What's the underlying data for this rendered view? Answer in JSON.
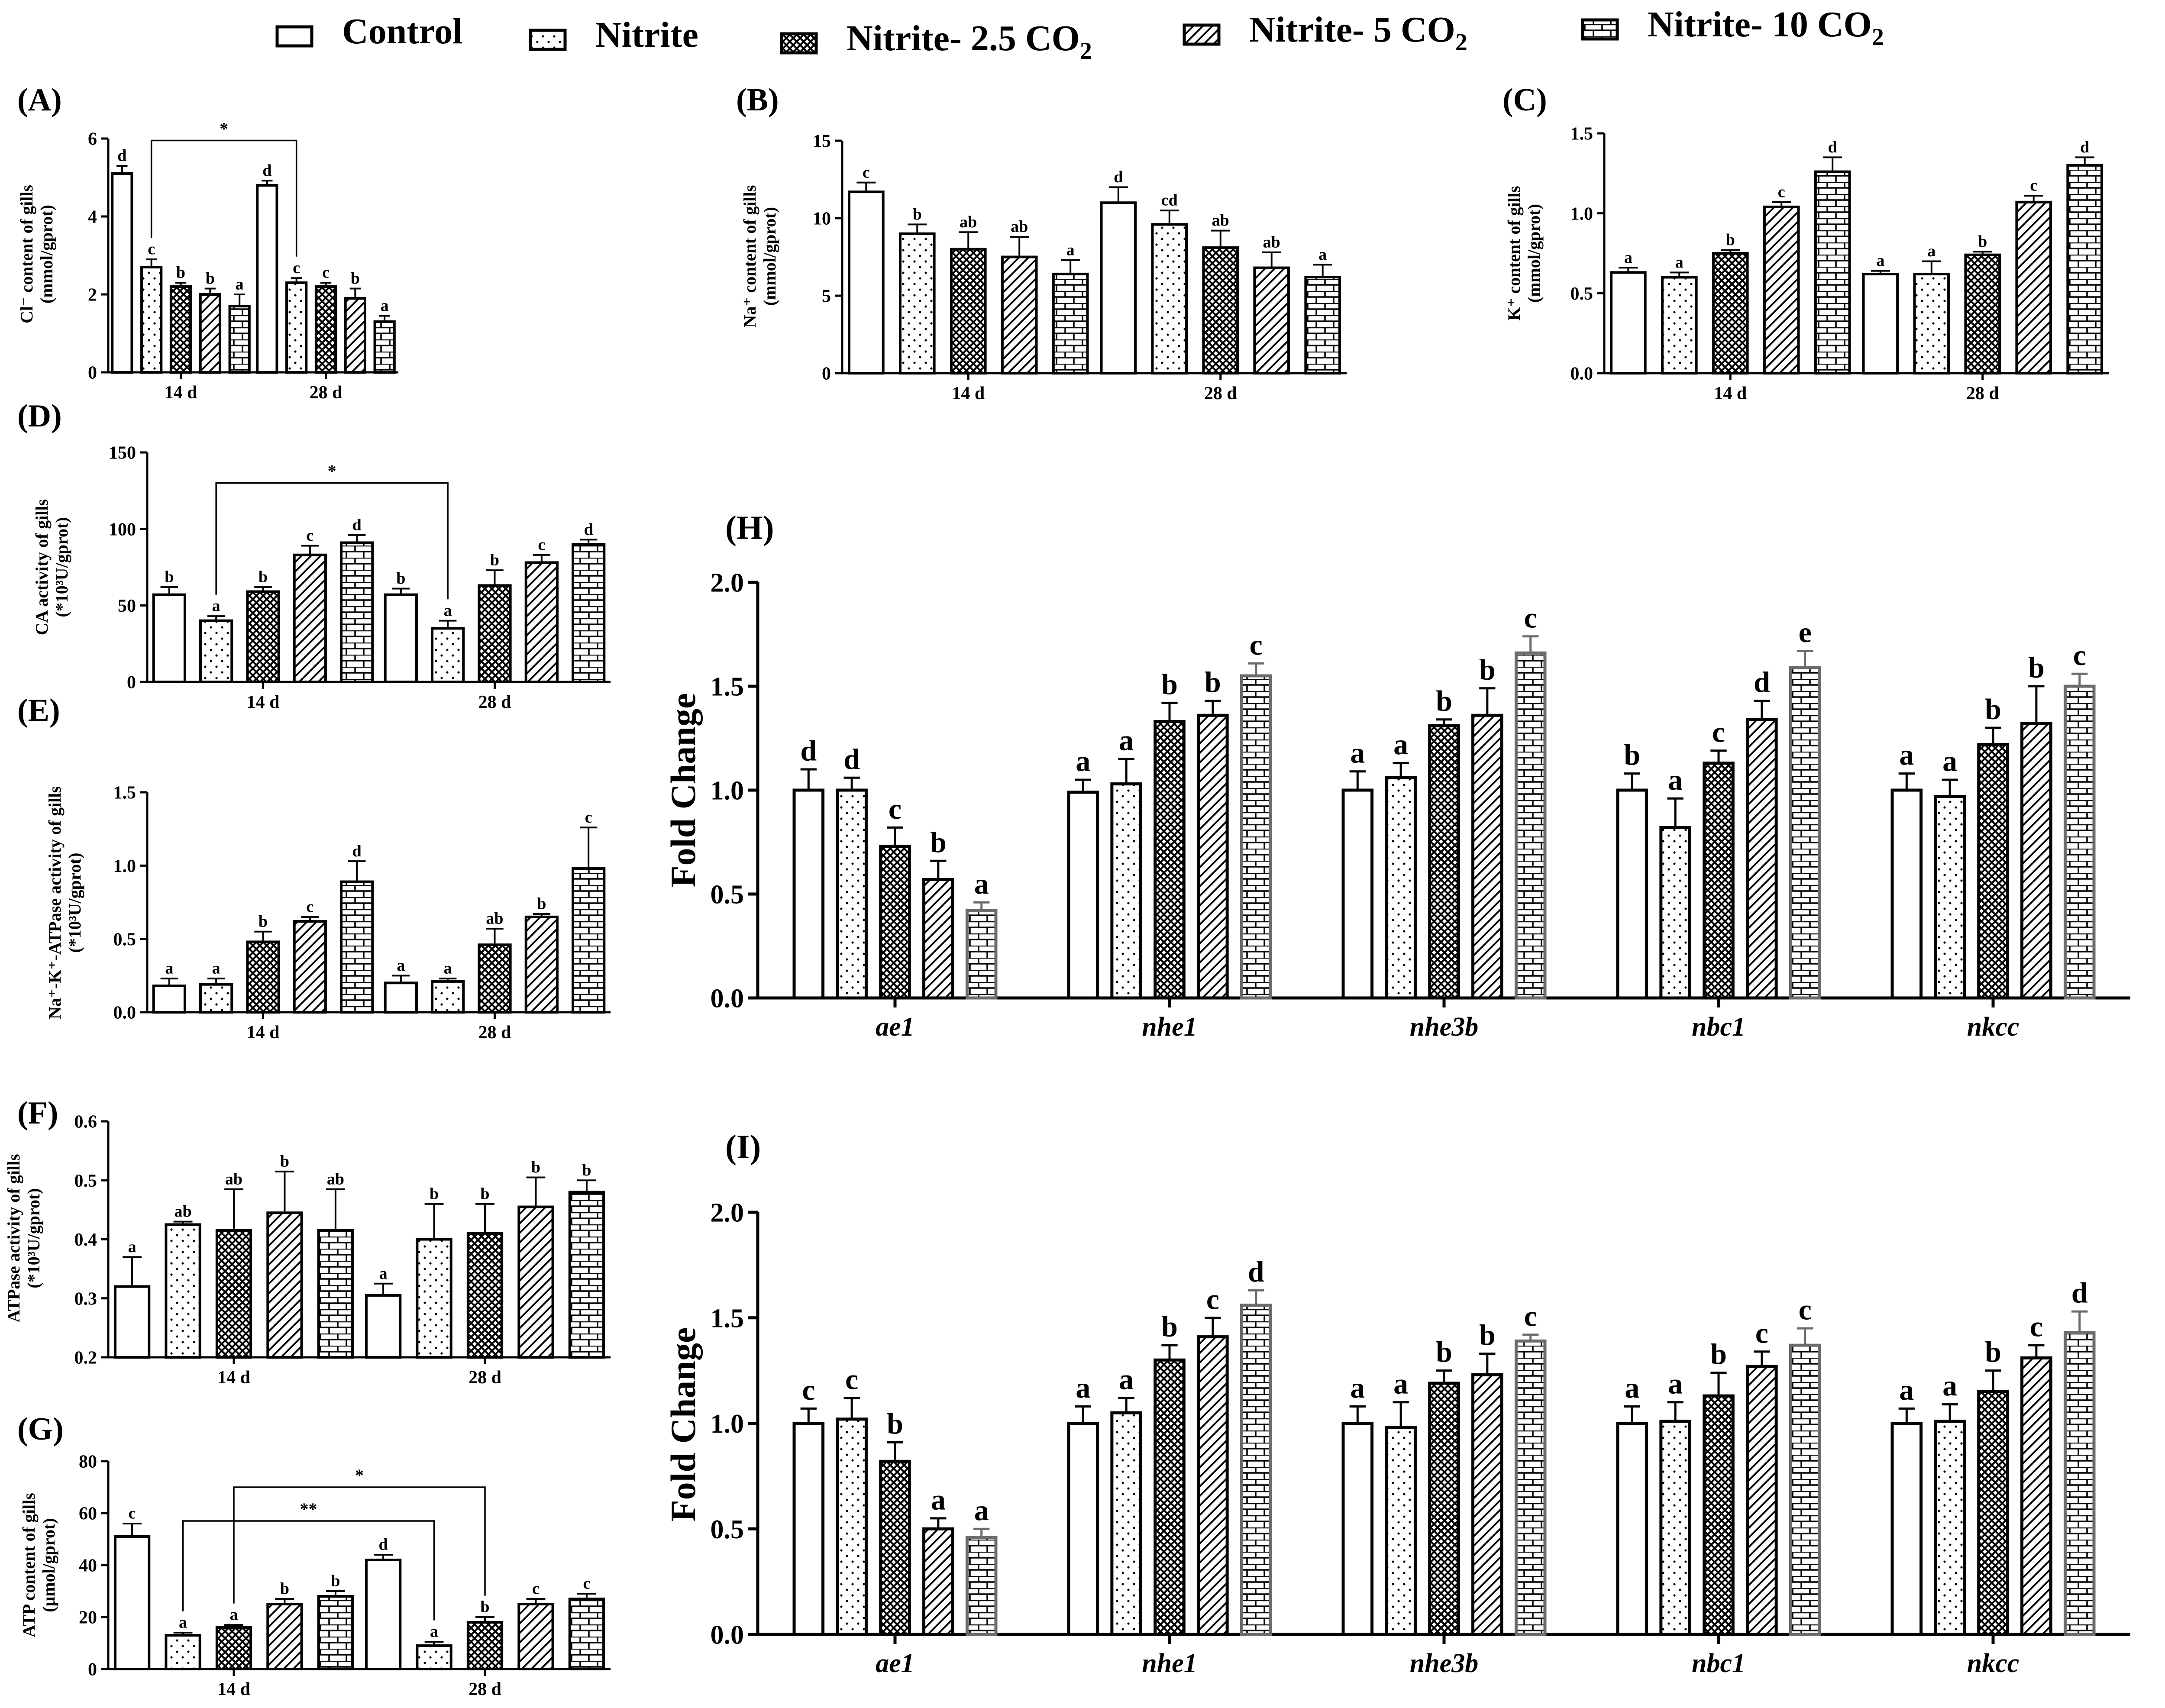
{
  "legend": [
    {
      "name": "Control",
      "sub": "",
      "pattern": "control"
    },
    {
      "name": "Nitrite",
      "sub": "",
      "pattern": "nitrite"
    },
    {
      "name": "Nitrite- 2.5 CO",
      "sub": "2",
      "pattern": "co25"
    },
    {
      "name": "Nitrite- 5 CO",
      "sub": "2",
      "pattern": "co5"
    },
    {
      "name": "Nitrite- 10 CO",
      "sub": "2",
      "pattern": "co10"
    }
  ],
  "chart_data": [
    {
      "panel": "(A)",
      "type": "bar",
      "xlabel": "",
      "ylabel": [
        "Cl⁻ content of gills",
        "(mmol/gprot)"
      ],
      "ylim": [
        0,
        6
      ],
      "ticks": [
        "0",
        "2",
        "4",
        "6"
      ],
      "categories": [
        "14 d",
        "28 d"
      ],
      "series": [
        {
          "name": "Control",
          "values": [
            5.1,
            4.8
          ],
          "err": [
            0.2,
            0.12
          ],
          "letters": [
            "d",
            "d"
          ]
        },
        {
          "name": "Nitrite",
          "values": [
            2.7,
            2.3
          ],
          "err": [
            0.2,
            0.12
          ],
          "letters": [
            "c",
            "c"
          ]
        },
        {
          "name": "Nitrite- 2.5 CO2",
          "values": [
            2.2,
            2.2
          ],
          "err": [
            0.1,
            0.1
          ],
          "letters": [
            "b",
            "c"
          ]
        },
        {
          "name": "Nitrite- 5 CO2",
          "values": [
            2.0,
            1.9
          ],
          "err": [
            0.15,
            0.25
          ],
          "letters": [
            "b",
            "b"
          ]
        },
        {
          "name": "Nitrite- 10 CO2",
          "values": [
            1.7,
            1.3
          ],
          "err": [
            0.3,
            0.15
          ],
          "letters": [
            "a",
            "a"
          ]
        }
      ],
      "significance": [
        {
          "from": [
            0,
            1
          ],
          "to": [
            1,
            1
          ],
          "level": 5.95,
          "label": "*"
        }
      ]
    },
    {
      "panel": "(B)",
      "type": "bar",
      "xlabel": "",
      "ylabel": [
        "Na⁺ content of gills",
        "(mmol/gprot)"
      ],
      "ylim": [
        0,
        15
      ],
      "ticks": [
        "0",
        "5",
        "10",
        "15"
      ],
      "categories": [
        "14 d",
        "28 d"
      ],
      "series": [
        {
          "name": "Control",
          "values": [
            11.7,
            11.0
          ],
          "err": [
            0.6,
            1.0
          ],
          "letters": [
            "c",
            "d"
          ]
        },
        {
          "name": "Nitrite",
          "values": [
            9.0,
            9.6
          ],
          "err": [
            0.6,
            0.9
          ],
          "letters": [
            "b",
            "cd"
          ]
        },
        {
          "name": "Nitrite- 2.5 CO2",
          "values": [
            8.0,
            8.1
          ],
          "err": [
            1.1,
            1.1
          ],
          "letters": [
            "ab",
            "ab"
          ]
        },
        {
          "name": "Nitrite- 5 CO2",
          "values": [
            7.5,
            6.8
          ],
          "err": [
            1.3,
            1.0
          ],
          "letters": [
            "ab",
            "ab"
          ]
        },
        {
          "name": "Nitrite- 10 CO2",
          "values": [
            6.4,
            6.2
          ],
          "err": [
            0.9,
            0.8
          ],
          "letters": [
            "a",
            "a"
          ]
        }
      ],
      "significance": []
    },
    {
      "panel": "(C)",
      "type": "bar",
      "xlabel": "",
      "ylabel": [
        "K⁺ content of gills",
        "(mmol/gprot)"
      ],
      "ylim": [
        0,
        1.5
      ],
      "ticks": [
        "0.0",
        "0.5",
        "1.0",
        "1.5"
      ],
      "categories": [
        "14 d",
        "28 d"
      ],
      "series": [
        {
          "name": "Control",
          "values": [
            0.63,
            0.62
          ],
          "err": [
            0.03,
            0.02
          ],
          "letters": [
            "a",
            "a"
          ]
        },
        {
          "name": "Nitrite",
          "values": [
            0.6,
            0.62
          ],
          "err": [
            0.03,
            0.08
          ],
          "letters": [
            "a",
            "a"
          ]
        },
        {
          "name": "Nitrite- 2.5 CO2",
          "values": [
            0.75,
            0.74
          ],
          "err": [
            0.02,
            0.02
          ],
          "letters": [
            "b",
            "b"
          ]
        },
        {
          "name": "Nitrite- 5 CO2",
          "values": [
            1.04,
            1.07
          ],
          "err": [
            0.03,
            0.04
          ],
          "letters": [
            "c",
            "c"
          ]
        },
        {
          "name": "Nitrite- 10 CO2",
          "values": [
            1.26,
            1.3
          ],
          "err": [
            0.09,
            0.05
          ],
          "letters": [
            "d",
            "d"
          ]
        }
      ],
      "significance": []
    },
    {
      "panel": "(D)",
      "type": "bar",
      "xlabel": "",
      "ylabel": [
        "CA activity of gills",
        "(*10³U/gprot)"
      ],
      "ylim": [
        0,
        150
      ],
      "ticks": [
        "0",
        "50",
        "100",
        "150"
      ],
      "categories": [
        "14 d",
        "28 d"
      ],
      "series": [
        {
          "name": "Control",
          "values": [
            57,
            57
          ],
          "err": [
            5,
            4
          ],
          "letters": [
            "b",
            "b"
          ]
        },
        {
          "name": "Nitrite",
          "values": [
            40,
            35
          ],
          "err": [
            3,
            5
          ],
          "letters": [
            "a",
            "a"
          ]
        },
        {
          "name": "Nitrite- 2.5 CO2",
          "values": [
            59,
            63
          ],
          "err": [
            3,
            10
          ],
          "letters": [
            "b",
            "b"
          ]
        },
        {
          "name": "Nitrite- 5 CO2",
          "values": [
            83,
            78
          ],
          "err": [
            6,
            5
          ],
          "letters": [
            "c",
            "c"
          ]
        },
        {
          "name": "Nitrite- 10 CO2",
          "values": [
            91,
            90
          ],
          "err": [
            5,
            3
          ],
          "letters": [
            "d",
            "d"
          ]
        }
      ],
      "significance": [
        {
          "from": [
            0,
            1
          ],
          "to": [
            1,
            1
          ],
          "level": 130,
          "label": "*"
        }
      ]
    },
    {
      "panel": "(E)",
      "type": "bar",
      "xlabel": "",
      "ylabel": [
        "Na⁺-K⁺-ATPase activity of gills",
        "(*10³U/gprot)"
      ],
      "ylim": [
        0,
        1.5
      ],
      "ticks": [
        "0.0",
        "0.5",
        "1.0",
        "1.5"
      ],
      "categories": [
        "14 d",
        "28 d"
      ],
      "series": [
        {
          "name": "Control",
          "values": [
            0.18,
            0.2
          ],
          "err": [
            0.05,
            0.05
          ],
          "letters": [
            "a",
            "a"
          ]
        },
        {
          "name": "Nitrite",
          "values": [
            0.19,
            0.21
          ],
          "err": [
            0.04,
            0.02
          ],
          "letters": [
            "a",
            "a"
          ]
        },
        {
          "name": "Nitrite- 2.5 CO2",
          "values": [
            0.48,
            0.46
          ],
          "err": [
            0.07,
            0.11
          ],
          "letters": [
            "b",
            "ab"
          ]
        },
        {
          "name": "Nitrite- 5 CO2",
          "values": [
            0.62,
            0.65
          ],
          "err": [
            0.03,
            0.02
          ],
          "letters": [
            "c",
            "b"
          ]
        },
        {
          "name": "Nitrite- 10 CO2",
          "values": [
            0.89,
            0.98
          ],
          "err": [
            0.14,
            0.28
          ],
          "letters": [
            "d",
            "c"
          ]
        }
      ],
      "significance": []
    },
    {
      "panel": "(F)",
      "type": "bar",
      "xlabel": "",
      "ylabel": [
        "ATPase activity of gills",
        "(*10³U/gprot)"
      ],
      "ylim": [
        0.2,
        0.6
      ],
      "ticks": [
        "0.2",
        "0.3",
        "0.4",
        "0.5",
        "0.6"
      ],
      "categories": [
        "14 d",
        "28 d"
      ],
      "series": [
        {
          "name": "Control",
          "values": [
            0.32,
            0.305
          ],
          "err": [
            0.05,
            0.02
          ],
          "letters": [
            "a",
            "a"
          ]
        },
        {
          "name": "Nitrite",
          "values": [
            0.425,
            0.4
          ],
          "err": [
            0.005,
            0.06
          ],
          "letters": [
            "ab",
            "b"
          ]
        },
        {
          "name": "Nitrite- 2.5 CO2",
          "values": [
            0.415,
            0.41
          ],
          "err": [
            0.07,
            0.05
          ],
          "letters": [
            "ab",
            "b"
          ]
        },
        {
          "name": "Nitrite- 5 CO2",
          "values": [
            0.445,
            0.455
          ],
          "err": [
            0.07,
            0.05
          ],
          "letters": [
            "b",
            "b"
          ]
        },
        {
          "name": "Nitrite- 10 CO2",
          "values": [
            0.415,
            0.48
          ],
          "err": [
            0.07,
            0.02
          ],
          "letters": [
            "ab",
            "b"
          ]
        }
      ],
      "significance": []
    },
    {
      "panel": "(G)",
      "type": "bar",
      "xlabel": "",
      "ylabel": [
        "ATP content of gills",
        "(μmol/gprot)"
      ],
      "ylim": [
        0,
        80
      ],
      "ticks": [
        "0",
        "20",
        "40",
        "60",
        "80"
      ],
      "categories": [
        "14 d",
        "28 d"
      ],
      "series": [
        {
          "name": "Control",
          "values": [
            51,
            42
          ],
          "err": [
            5,
            2
          ],
          "letters": [
            "c",
            "d"
          ]
        },
        {
          "name": "Nitrite",
          "values": [
            13,
            9
          ],
          "err": [
            1,
            1.5
          ],
          "letters": [
            "a",
            "a"
          ]
        },
        {
          "name": "Nitrite- 2.5 CO2",
          "values": [
            16,
            18
          ],
          "err": [
            1,
            2
          ],
          "letters": [
            "a",
            "b"
          ]
        },
        {
          "name": "Nitrite- 5 CO2",
          "values": [
            25,
            25
          ],
          "err": [
            2,
            2
          ],
          "letters": [
            "b",
            "c"
          ]
        },
        {
          "name": "Nitrite- 10 CO2",
          "values": [
            28,
            27
          ],
          "err": [
            2,
            2
          ],
          "letters": [
            "b",
            "c"
          ]
        }
      ],
      "significance": [
        {
          "from": [
            0,
            2
          ],
          "to": [
            1,
            2
          ],
          "level": 70,
          "label": "*"
        },
        {
          "from": [
            0,
            1
          ],
          "to": [
            1,
            1
          ],
          "level": 57,
          "label": "**"
        }
      ]
    },
    {
      "panel": "(H)",
      "type": "bar",
      "xlabel": "",
      "ylabel": [
        "Fold Change"
      ],
      "ylim": [
        0,
        2.0
      ],
      "ticks": [
        "0.0",
        "0.5",
        "1.0",
        "1.5",
        "2.0"
      ],
      "categories": [
        "ae1",
        "nhe1",
        "nhe3b",
        "nbc1",
        "nkcc"
      ],
      "series": [
        {
          "name": "Control",
          "values": [
            1.0,
            0.99,
            1.0,
            1.0,
            1.0
          ],
          "err": [
            0.1,
            0.06,
            0.09,
            0.08,
            0.08
          ],
          "letters": [
            "d",
            "a",
            "a",
            "b",
            "a"
          ]
        },
        {
          "name": "Nitrite",
          "values": [
            1.0,
            1.03,
            1.06,
            0.82,
            0.97
          ],
          "err": [
            0.06,
            0.12,
            0.07,
            0.14,
            0.08
          ],
          "letters": [
            "d",
            "a",
            "a",
            "a",
            "a"
          ]
        },
        {
          "name": "Nitrite- 2.5 CO2",
          "values": [
            0.73,
            1.33,
            1.31,
            1.13,
            1.22
          ],
          "err": [
            0.09,
            0.09,
            0.03,
            0.06,
            0.08
          ],
          "letters": [
            "c",
            "b",
            "b",
            "c",
            "b"
          ]
        },
        {
          "name": "Nitrite- 5 CO2",
          "values": [
            0.57,
            1.36,
            1.36,
            1.34,
            1.32
          ],
          "err": [
            0.09,
            0.07,
            0.13,
            0.09,
            0.18
          ],
          "letters": [
            "b",
            "b",
            "b",
            "d",
            "b"
          ]
        },
        {
          "name": "Nitrite- 10 CO2",
          "values": [
            0.42,
            1.55,
            1.66,
            1.59,
            1.5
          ],
          "err": [
            0.04,
            0.06,
            0.08,
            0.08,
            0.06
          ],
          "letters": [
            "a",
            "c",
            "c",
            "e",
            "c"
          ]
        }
      ],
      "significance": []
    },
    {
      "panel": "(I)",
      "type": "bar",
      "xlabel": "",
      "ylabel": [
        "Fold Change"
      ],
      "ylim": [
        0,
        2.0
      ],
      "ticks": [
        "0.0",
        "0.5",
        "1.0",
        "1.5",
        "2.0"
      ],
      "categories": [
        "ae1",
        "nhe1",
        "nhe3b",
        "nbc1",
        "nkcc"
      ],
      "series": [
        {
          "name": "Control",
          "values": [
            1.0,
            1.0,
            1.0,
            1.0,
            1.0
          ],
          "err": [
            0.07,
            0.08,
            0.08,
            0.08,
            0.07
          ],
          "letters": [
            "c",
            "a",
            "a",
            "a",
            "a"
          ]
        },
        {
          "name": "Nitrite",
          "values": [
            1.02,
            1.05,
            0.98,
            1.01,
            1.01
          ],
          "err": [
            0.1,
            0.07,
            0.12,
            0.09,
            0.08
          ],
          "letters": [
            "c",
            "a",
            "a",
            "a",
            "a"
          ]
        },
        {
          "name": "Nitrite- 2.5 CO2",
          "values": [
            0.82,
            1.3,
            1.19,
            1.13,
            1.15
          ],
          "err": [
            0.09,
            0.07,
            0.06,
            0.11,
            0.1
          ],
          "letters": [
            "b",
            "b",
            "b",
            "b",
            "b"
          ]
        },
        {
          "name": "Nitrite- 5 CO2",
          "values": [
            0.5,
            1.41,
            1.23,
            1.27,
            1.31
          ],
          "err": [
            0.05,
            0.09,
            0.1,
            0.07,
            0.06
          ],
          "letters": [
            "a",
            "c",
            "b",
            "c",
            "c"
          ]
        },
        {
          "name": "Nitrite- 10 CO2",
          "values": [
            0.46,
            1.56,
            1.39,
            1.37,
            1.43
          ],
          "err": [
            0.04,
            0.07,
            0.03,
            0.08,
            0.1
          ],
          "letters": [
            "a",
            "d",
            "c",
            "c",
            "d"
          ]
        }
      ],
      "significance": []
    }
  ]
}
